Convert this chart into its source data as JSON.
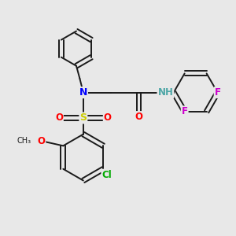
{
  "background_color": "#e8e8e8",
  "bond_color": "#1a1a1a",
  "atom_colors": {
    "N": "#0000ff",
    "O": "#ff0000",
    "S": "#cccc00",
    "F": "#cc00cc",
    "Cl": "#00aa00",
    "H": "#4da6a6",
    "C": "#1a1a1a"
  },
  "figsize": [
    3.0,
    3.0
  ],
  "dpi": 100
}
